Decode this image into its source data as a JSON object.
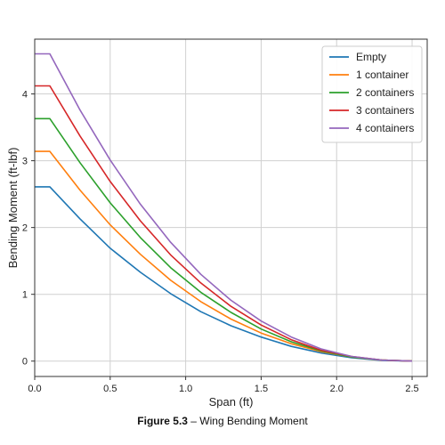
{
  "caption": {
    "label": "Figure 5.3",
    "text": " – Wing Bending Moment"
  },
  "chart_data": {
    "type": "line",
    "xlabel": "Span (ft)",
    "ylabel": "Bending Moment (ft-lbf)",
    "xlim": [
      0.0,
      2.6
    ],
    "ylim": [
      -0.23,
      4.82
    ],
    "x_ticks": [
      0.0,
      0.5,
      1.0,
      1.5,
      2.0,
      2.5
    ],
    "x_tick_labels": [
      "0.0",
      "0.5",
      "1.0",
      "1.5",
      "2.0",
      "2.5"
    ],
    "y_ticks": [
      0,
      1,
      2,
      3,
      4
    ],
    "y_tick_labels": [
      "0",
      "1",
      "2",
      "3",
      "4"
    ],
    "grid": true,
    "legend_position": "top-right",
    "x": [
      0.0,
      0.1,
      0.3,
      0.5,
      0.7,
      0.9,
      1.1,
      1.3,
      1.5,
      1.7,
      1.9,
      2.1,
      2.3,
      2.5
    ],
    "series": [
      {
        "name": "Empty",
        "color": "#1f77b4",
        "values": [
          2.61,
          2.61,
          2.13,
          1.69,
          1.33,
          1.01,
          0.74,
          0.53,
          0.36,
          0.22,
          0.12,
          0.05,
          0.01,
          0.0
        ]
      },
      {
        "name": "1 container",
        "color": "#ff7f0e",
        "values": [
          3.14,
          3.14,
          2.56,
          2.04,
          1.6,
          1.21,
          0.89,
          0.63,
          0.42,
          0.26,
          0.14,
          0.06,
          0.015,
          0.0
        ]
      },
      {
        "name": "2 containers",
        "color": "#2ca02c",
        "values": [
          3.63,
          3.63,
          2.97,
          2.37,
          1.85,
          1.4,
          1.03,
          0.73,
          0.48,
          0.29,
          0.15,
          0.06,
          0.015,
          0.0
        ]
      },
      {
        "name": "3 containers",
        "color": "#d62728",
        "values": [
          4.12,
          4.12,
          3.37,
          2.69,
          2.1,
          1.59,
          1.17,
          0.82,
          0.54,
          0.32,
          0.16,
          0.07,
          0.015,
          0.0
        ]
      },
      {
        "name": "4 containers",
        "color": "#9467bd",
        "values": [
          4.6,
          4.6,
          3.76,
          3.01,
          2.35,
          1.78,
          1.3,
          0.91,
          0.6,
          0.36,
          0.18,
          0.07,
          0.015,
          0.0
        ]
      }
    ]
  }
}
